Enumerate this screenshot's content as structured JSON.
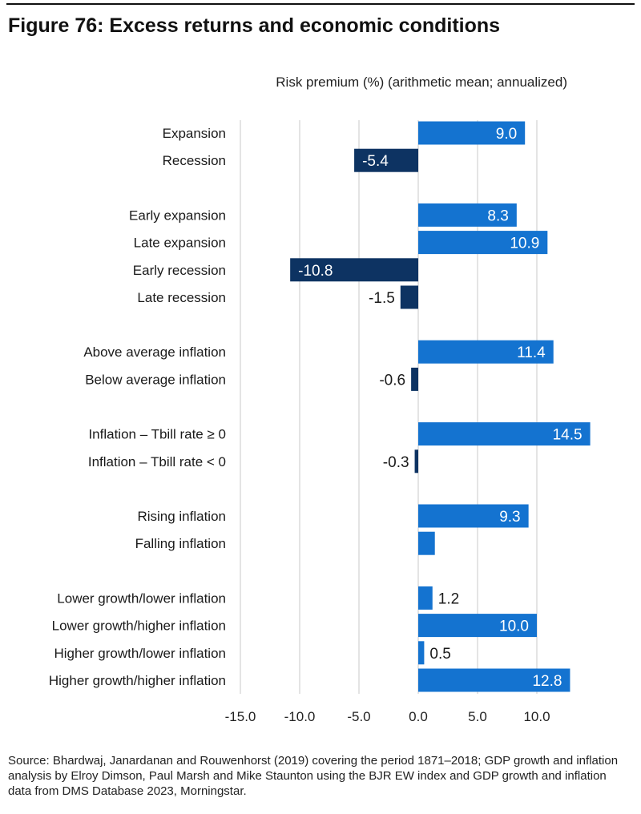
{
  "figure": {
    "title": "Figure 76: Excess returns and economic conditions",
    "source": "Source: Bhardwaj, Janardanan and Rouwenhorst (2019) covering the period 1871–2018; GDP growth and inflation analysis by Elroy Dimson, Paul Marsh and Mike Staunton using the BJR EW index and GDP growth and inflation data from DMS Database 2023, Morningstar."
  },
  "chart_data": {
    "type": "bar",
    "orientation": "horizontal",
    "xlabel": "Risk premium (%) (arithmetic mean; annualized)",
    "xlim": [
      -15,
      15
    ],
    "xticks": [
      -15,
      -10,
      -5,
      0,
      5,
      10
    ],
    "xtick_labels": [
      "-15.0",
      "-10.0",
      "-5.0",
      "0.0",
      "5.0",
      "10.0"
    ],
    "grid": true,
    "legend": "none",
    "colors": {
      "positive": "#1473D0",
      "negative": "#0D3362",
      "label_inside": "#ffffff",
      "label_outside": "#1a1a1a",
      "gridline": "#c8c8c8"
    },
    "groups": [
      {
        "bars": [
          {
            "category": "Expansion",
            "value": 9.0,
            "label": "9.0"
          },
          {
            "category": "Recession",
            "value": -5.4,
            "label": "-5.4"
          }
        ]
      },
      {
        "bars": [
          {
            "category": "Early expansion",
            "value": 8.3,
            "label": "8.3"
          },
          {
            "category": "Late expansion",
            "value": 10.9,
            "label": "10.9"
          },
          {
            "category": "Early recession",
            "value": -10.8,
            "label": "-10.8"
          },
          {
            "category": "Late recession",
            "value": -1.5,
            "label": "-1.5"
          }
        ]
      },
      {
        "bars": [
          {
            "category": "Above average inflation",
            "value": 11.4,
            "label": "11.4"
          },
          {
            "category": "Below average inflation",
            "value": -0.6,
            "label": "-0.6"
          }
        ]
      },
      {
        "bars": [
          {
            "category": "Inflation – Tbill rate ≥ 0",
            "value": 14.5,
            "label": "14.5"
          },
          {
            "category": "Inflation – Tbill rate < 0",
            "value": -0.3,
            "label": "-0.3"
          }
        ]
      },
      {
        "bars": [
          {
            "category": "Rising inflation",
            "value": 9.3,
            "label": "9.3"
          },
          {
            "category": "Falling inflation",
            "value": 1.4,
            "label": ""
          }
        ]
      },
      {
        "bars": [
          {
            "category": "Lower growth/lower inflation",
            "value": 1.2,
            "label": "1.2"
          },
          {
            "category": "Lower growth/higher inflation",
            "value": 10.0,
            "label": "10.0"
          },
          {
            "category": "Higher growth/lower inflation",
            "value": 0.5,
            "label": "0.5"
          },
          {
            "category": "Higher growth/higher inflation",
            "value": 12.8,
            "label": "12.8"
          }
        ]
      }
    ]
  }
}
